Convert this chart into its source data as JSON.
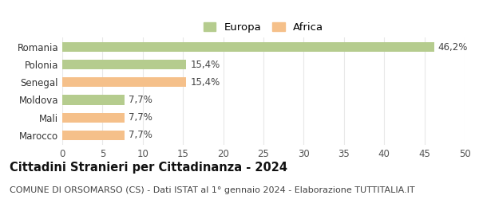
{
  "categories": [
    "Marocco",
    "Mali",
    "Moldova",
    "Senegal",
    "Polonia",
    "Romania"
  ],
  "values": [
    7.7,
    7.7,
    7.7,
    15.4,
    15.4,
    46.2
  ],
  "colors": [
    "#f5c08a",
    "#f5c08a",
    "#b5cc8e",
    "#f5c08a",
    "#b5cc8e",
    "#b5cc8e"
  ],
  "labels": [
    "7,7%",
    "7,7%",
    "7,7%",
    "15,4%",
    "15,4%",
    "46,2%"
  ],
  "europa_color": "#b5cc8e",
  "africa_color": "#f5c08a",
  "title": "Cittadini Stranieri per Cittadinanza - 2024",
  "subtitle": "COMUNE DI ORSOMARSO (CS) - Dati ISTAT al 1° gennaio 2024 - Elaborazione TUTTITALIA.IT",
  "xlim": [
    0,
    50
  ],
  "xticks": [
    0,
    5,
    10,
    15,
    20,
    25,
    30,
    35,
    40,
    45,
    50
  ],
  "background_color": "#ffffff",
  "grid_color": "#e8e8e8",
  "bar_height": 0.55,
  "title_fontsize": 10.5,
  "subtitle_fontsize": 8.0,
  "label_fontsize": 8.5,
  "tick_fontsize": 8.5,
  "legend_fontsize": 9.5
}
